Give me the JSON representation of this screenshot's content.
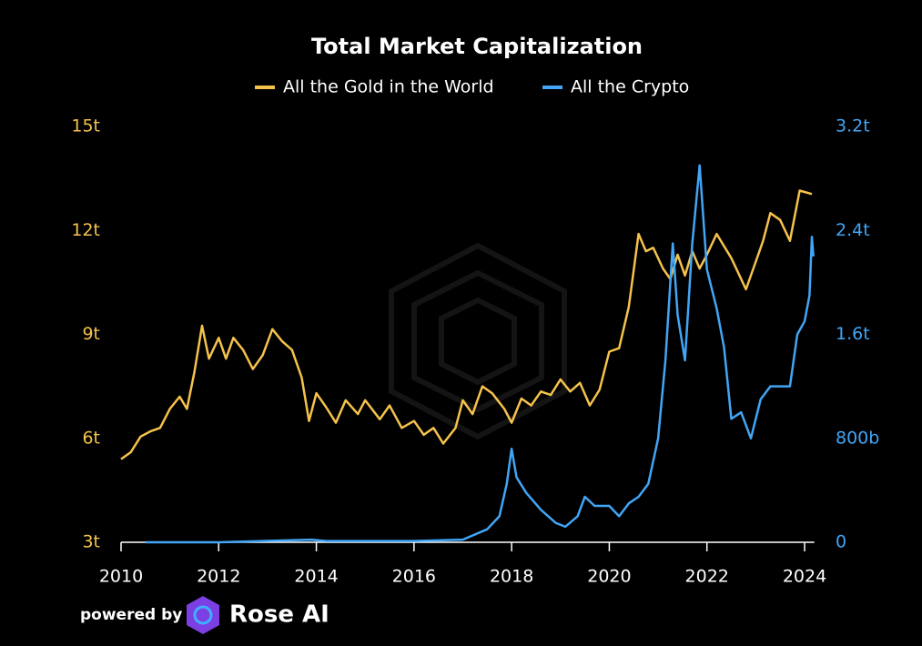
{
  "chart_data": {
    "type": "line",
    "title": "Total Market Capitalization",
    "xlim": [
      2010,
      2024.2
    ],
    "xticks": [
      2010,
      2012,
      2014,
      2016,
      2018,
      2020,
      2022,
      2024
    ],
    "ylim": [
      3,
      15
    ],
    "yticks": [
      {
        "value": 3,
        "label": "3t"
      },
      {
        "value": 6,
        "label": "6t"
      },
      {
        "value": 9,
        "label": "9t"
      },
      {
        "value": 12,
        "label": "12t"
      },
      {
        "value": 15,
        "label": "15t"
      }
    ],
    "y2lim": [
      0,
      3.2
    ],
    "y2ticks": [
      0,
      {
        "value": 0.8,
        "label": "800b"
      },
      {
        "value": 1.6,
        "label": "1.6t"
      },
      {
        "value": 2.4,
        "label": "2.4t"
      },
      {
        "value": 3.2,
        "label": "3.2t"
      }
    ],
    "grid": false,
    "legend": "top",
    "footer": {
      "prefix": "powered by",
      "brand": "Rose AI"
    },
    "series": [
      {
        "name": "All the Gold in the World",
        "color": "#f5c24c",
        "x": [
          2010.0,
          2010.2,
          2010.4,
          2010.6,
          2010.8,
          2011.0,
          2011.2,
          2011.35,
          2011.5,
          2011.66,
          2011.8,
          2012.0,
          2012.15,
          2012.3,
          2012.5,
          2012.7,
          2012.9,
          2013.1,
          2013.3,
          2013.5,
          2013.7,
          2013.85,
          2014.0,
          2014.2,
          2014.4,
          2014.6,
          2014.85,
          2015.0,
          2015.3,
          2015.5,
          2015.75,
          2016.0,
          2016.2,
          2016.4,
          2016.6,
          2016.85,
          2017.0,
          2017.2,
          2017.4,
          2017.6,
          2017.85,
          2018.0,
          2018.2,
          2018.4,
          2018.6,
          2018.8,
          2019.0,
          2019.2,
          2019.4,
          2019.6,
          2019.8,
          2020.0,
          2020.2,
          2020.4,
          2020.6,
          2020.75,
          2020.9,
          2021.1,
          2021.25,
          2021.4,
          2021.55,
          2021.7,
          2021.85,
          2022.0,
          2022.2,
          2022.5,
          2022.8,
          2023.0,
          2023.15,
          2023.3,
          2023.5,
          2023.7,
          2023.9,
          2024.15
        ],
        "values": [
          5.4,
          5.6,
          6.05,
          6.2,
          6.3,
          6.85,
          7.2,
          6.85,
          7.9,
          9.25,
          8.3,
          8.9,
          8.3,
          8.9,
          8.55,
          8.0,
          8.4,
          9.15,
          8.8,
          8.55,
          7.75,
          6.5,
          7.3,
          6.9,
          6.45,
          7.1,
          6.7,
          7.1,
          6.55,
          6.95,
          6.3,
          6.5,
          6.1,
          6.3,
          5.85,
          6.3,
          7.1,
          6.7,
          7.5,
          7.3,
          6.85,
          6.45,
          7.15,
          6.95,
          7.35,
          7.25,
          7.7,
          7.35,
          7.6,
          6.95,
          7.4,
          8.5,
          8.6,
          9.8,
          11.9,
          11.4,
          11.5,
          10.9,
          10.6,
          11.3,
          10.7,
          11.4,
          10.9,
          11.3,
          11.9,
          11.2,
          10.3,
          11.1,
          11.7,
          12.5,
          12.3,
          11.7,
          13.15,
          13.05
        ]
      },
      {
        "name": "All the Crypto",
        "color": "#42a5f5",
        "axis": "y2",
        "x": [
          2010.5,
          2012.0,
          2013.9,
          2014.2,
          2016.0,
          2017.0,
          2017.5,
          2017.75,
          2017.9,
          2018.0,
          2018.1,
          2018.3,
          2018.6,
          2018.9,
          2019.1,
          2019.35,
          2019.5,
          2019.7,
          2020.0,
          2020.2,
          2020.4,
          2020.6,
          2020.8,
          2021.0,
          2021.15,
          2021.3,
          2021.4,
          2021.55,
          2021.7,
          2021.85,
          2022.0,
          2022.2,
          2022.35,
          2022.5,
          2022.7,
          2022.9,
          2023.1,
          2023.3,
          2023.5,
          2023.7,
          2023.85,
          2024.0,
          2024.1,
          2024.15,
          2024.18
        ],
        "values": [
          0,
          0,
          0.02,
          0.01,
          0.01,
          0.02,
          0.1,
          0.2,
          0.45,
          0.72,
          0.5,
          0.38,
          0.25,
          0.15,
          0.12,
          0.2,
          0.35,
          0.28,
          0.28,
          0.2,
          0.3,
          0.35,
          0.45,
          0.8,
          1.4,
          2.3,
          1.75,
          1.4,
          2.3,
          2.9,
          2.1,
          1.8,
          1.5,
          0.95,
          1.0,
          0.8,
          1.1,
          1.2,
          1.2,
          1.2,
          1.6,
          1.7,
          1.9,
          2.35,
          2.2
        ]
      }
    ]
  }
}
